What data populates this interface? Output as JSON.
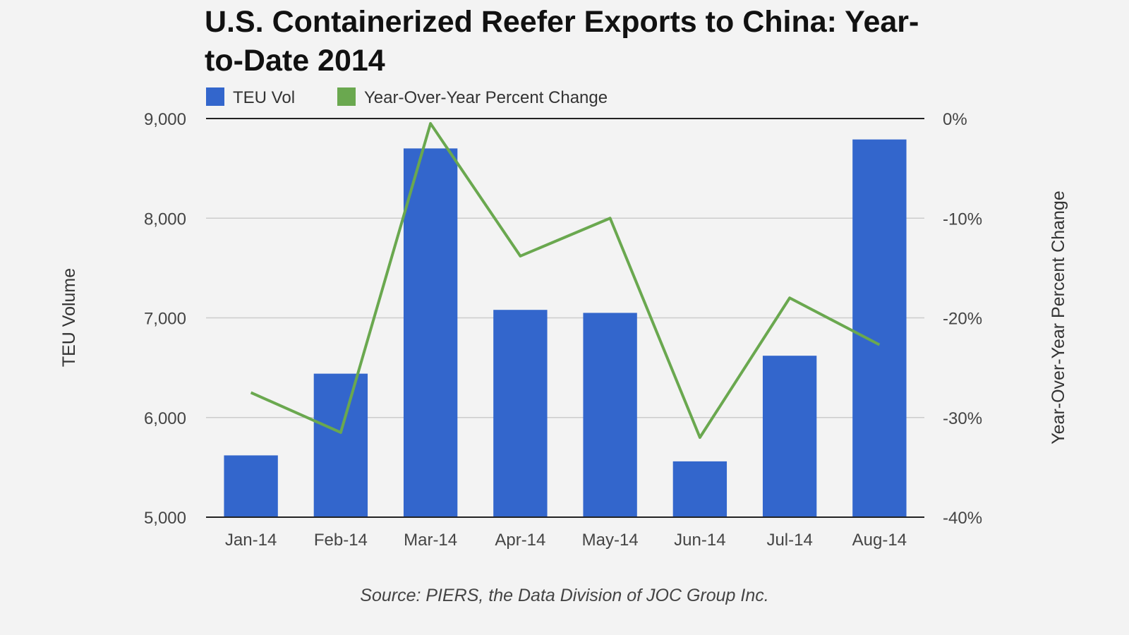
{
  "chart_data": {
    "type": "bar",
    "title": "U.S. Containerized Reefer Exports to China: Year-to-Date 2014",
    "categories": [
      "Jan-14",
      "Feb-14",
      "Mar-14",
      "Apr-14",
      "May-14",
      "Jun-14",
      "Jul-14",
      "Aug-14"
    ],
    "series": [
      {
        "name": "TEU Vol",
        "type": "bar",
        "axis": "left",
        "color": "#3366cc",
        "values": [
          5620,
          6440,
          8700,
          7080,
          7050,
          5560,
          6620,
          8790
        ]
      },
      {
        "name": "Year-Over-Year Percent Change",
        "type": "line",
        "axis": "right",
        "color": "#6aa84f",
        "values": [
          -27.5,
          -31.5,
          -0.5,
          -13.8,
          -10.0,
          -32.0,
          -18.0,
          -22.7
        ]
      }
    ],
    "y_left": {
      "label": "TEU Volume",
      "range": [
        5000,
        9000
      ],
      "ticks": [
        9000,
        8000,
        7000,
        6000,
        5000
      ],
      "tick_labels": [
        "9,000",
        "8,000",
        "7,000",
        "6,000",
        "5,000"
      ]
    },
    "y_right": {
      "label": "Year-Over-Year Percent Change",
      "range": [
        -40,
        0
      ],
      "ticks": [
        0,
        -10,
        -20,
        -30,
        -40
      ],
      "tick_labels": [
        "0%",
        "-10%",
        "-20%",
        "-30%",
        "-40%"
      ]
    },
    "grid": true,
    "legend_position": "top-left",
    "source": "Source: PIERS, the Data Division of JOC Group Inc."
  }
}
